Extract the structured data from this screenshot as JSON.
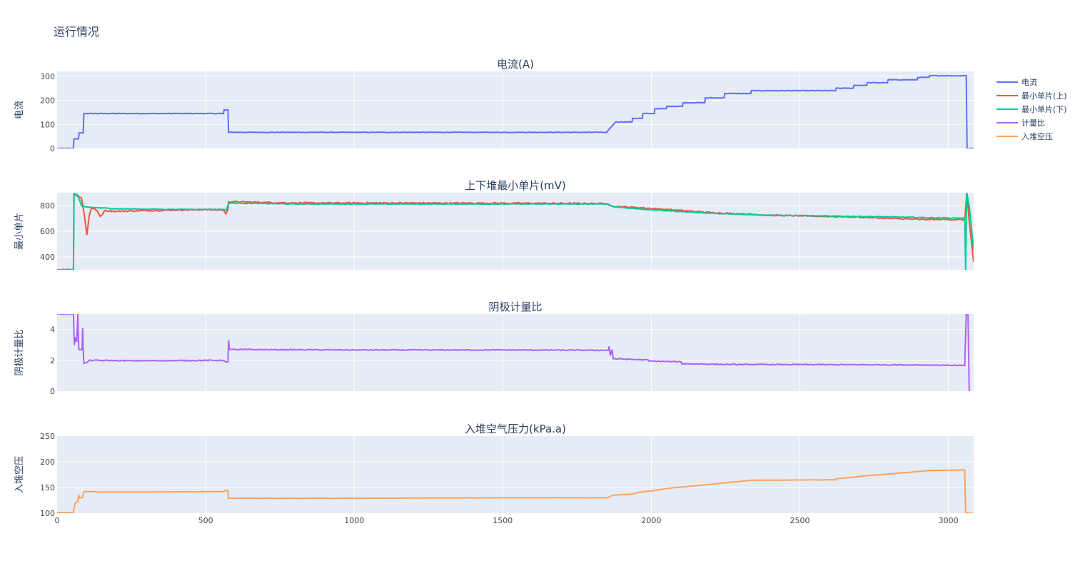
{
  "page": {
    "title": "运行情况"
  },
  "chart_data": {
    "type": "line",
    "x_axis": {
      "range": [
        0,
        3085
      ],
      "ticks": [
        0,
        500,
        1000,
        1500,
        2000,
        2500,
        3000
      ]
    },
    "legend": {
      "placement": "top-right",
      "items": [
        {
          "name": "电流",
          "color": "#636efa"
        },
        {
          "name": "最小单片(上)",
          "color": "#ef553b"
        },
        {
          "name": "最小单片(下)",
          "color": "#00cc96"
        },
        {
          "name": "计量比",
          "color": "#ab63fa"
        },
        {
          "name": "入堆空压",
          "color": "#ffa15a"
        }
      ]
    },
    "panels": [
      {
        "title": "电流(A)",
        "ylabel": "电流",
        "ylim": [
          0,
          320
        ],
        "yticks": [
          0,
          100,
          200,
          300
        ],
        "series": [
          {
            "name": "电流",
            "color": "#636efa",
            "noise": 1.2,
            "points": [
              [
                0,
                0
              ],
              [
                55,
                0
              ],
              [
                57,
                40
              ],
              [
                72,
                40
              ],
              [
                74,
                65
              ],
              [
                88,
                65
              ],
              [
                90,
                145
              ],
              [
                560,
                145
              ],
              [
                562,
                160
              ],
              [
                575,
                160
              ],
              [
                577,
                67
              ],
              [
                1850,
                67
              ],
              [
                1858,
                80
              ],
              [
                1868,
                93
              ],
              [
                1880,
                110
              ],
              [
                1935,
                110
              ],
              [
                1937,
                125
              ],
              [
                1970,
                125
              ],
              [
                1972,
                145
              ],
              [
                2010,
                145
              ],
              [
                2012,
                165
              ],
              [
                2050,
                165
              ],
              [
                2052,
                175
              ],
              [
                2105,
                175
              ],
              [
                2107,
                190
              ],
              [
                2180,
                190
              ],
              [
                2182,
                210
              ],
              [
                2245,
                210
              ],
              [
                2247,
                228
              ],
              [
                2335,
                228
              ],
              [
                2337,
                240
              ],
              [
                2620,
                240
              ],
              [
                2622,
                250
              ],
              [
                2680,
                250
              ],
              [
                2682,
                262
              ],
              [
                2725,
                262
              ],
              [
                2727,
                273
              ],
              [
                2795,
                273
              ],
              [
                2797,
                285
              ],
              [
                2895,
                285
              ],
              [
                2897,
                295
              ],
              [
                2935,
                295
              ],
              [
                2937,
                302
              ],
              [
                3060,
                302
              ],
              [
                3063,
                0
              ],
              [
                3085,
                0
              ]
            ]
          }
        ]
      },
      {
        "title": "上下堆最小单片(mV)",
        "ylabel": "最小单片",
        "ylim": [
          300,
          900
        ],
        "yticks": [
          400,
          600,
          800
        ],
        "series": [
          {
            "name": "最小单片(上)",
            "color": "#ef553b",
            "noise": 5,
            "points": [
              [
                0,
                300
              ],
              [
                55,
                300
              ],
              [
                57,
                890
              ],
              [
                70,
                870
              ],
              [
                82,
                860
              ],
              [
                92,
                720
              ],
              [
                100,
                570
              ],
              [
                108,
                720
              ],
              [
                115,
                780
              ],
              [
                125,
                775
              ],
              [
                135,
                760
              ],
              [
                145,
                715
              ],
              [
                152,
                730
              ],
              [
                160,
                760
              ],
              [
                200,
                755
              ],
              [
                300,
                760
              ],
              [
                400,
                765
              ],
              [
                500,
                768
              ],
              [
                560,
                765
              ],
              [
                568,
                735
              ],
              [
                575,
                770
              ],
              [
                577,
                830
              ],
              [
                800,
                820
              ],
              [
                1200,
                820
              ],
              [
                1600,
                818
              ],
              [
                1850,
                815
              ],
              [
                1870,
                795
              ],
              [
                1950,
                785
              ],
              [
                2050,
                770
              ],
              [
                2200,
                745
              ],
              [
                2400,
                725
              ],
              [
                2600,
                715
              ],
              [
                2700,
                710
              ],
              [
                2800,
                700
              ],
              [
                2900,
                692
              ],
              [
                3000,
                692
              ],
              [
                3055,
                690
              ],
              [
                3062,
                900
              ],
              [
                3070,
                680
              ],
              [
                3085,
                360
              ]
            ]
          },
          {
            "name": "最小单片(下)",
            "color": "#00cc96",
            "noise": 3,
            "points": [
              [
                0,
                300
              ],
              [
                55,
                300
              ],
              [
                57,
                895
              ],
              [
                70,
                880
              ],
              [
                82,
                800
              ],
              [
                95,
                790
              ],
              [
                120,
                785
              ],
              [
                200,
                775
              ],
              [
                300,
                772
              ],
              [
                400,
                770
              ],
              [
                500,
                770
              ],
              [
                560,
                770
              ],
              [
                570,
                765
              ],
              [
                577,
                820
              ],
              [
                800,
                812
              ],
              [
                1200,
                812
              ],
              [
                1600,
                812
              ],
              [
                1850,
                812
              ],
              [
                1870,
                792
              ],
              [
                1950,
                775
              ],
              [
                2050,
                760
              ],
              [
                2200,
                740
              ],
              [
                2400,
                725
              ],
              [
                2600,
                718
              ],
              [
                2800,
                712
              ],
              [
                2900,
                707
              ],
              [
                3000,
                703
              ],
              [
                3055,
                703
              ],
              [
                3058,
                300
              ],
              [
                3062,
                900
              ],
              [
                3070,
                800
              ],
              [
                3085,
                460
              ]
            ]
          }
        ]
      },
      {
        "title": "阴极计量比",
        "ylabel": "阴极计量比",
        "ylim": [
          0,
          5
        ],
        "yticks": [
          0,
          2,
          4
        ],
        "series": [
          {
            "name": "计量比",
            "color": "#ab63fa",
            "noise": 0.03,
            "points": [
              [
                0,
                5
              ],
              [
                55,
                5
              ],
              [
                58,
                3
              ],
              [
                62,
                3.5
              ],
              [
                66,
                3.2
              ],
              [
                70,
                5
              ],
              [
                73,
                2.7
              ],
              [
                84,
                2.7
              ],
              [
                86,
                4.1
              ],
              [
                88,
                2.6
              ],
              [
                90,
                1.8
              ],
              [
                100,
                1.85
              ],
              [
                108,
                2.0
              ],
              [
                250,
                1.97
              ],
              [
                400,
                1.98
              ],
              [
                560,
                2.0
              ],
              [
                568,
                1.9
              ],
              [
                575,
                1.9
              ],
              [
                577,
                3.3
              ],
              [
                580,
                2.7
              ],
              [
                1000,
                2.67
              ],
              [
                1500,
                2.67
              ],
              [
                1855,
                2.65
              ],
              [
                1858,
                2.9
              ],
              [
                1862,
                2.3
              ],
              [
                1868,
                2.7
              ],
              [
                1872,
                2.1
              ],
              [
                1990,
                2.02
              ],
              [
                1992,
                1.95
              ],
              [
                2100,
                1.9
              ],
              [
                2102,
                1.78
              ],
              [
                2200,
                1.75
              ],
              [
                2250,
                1.73
              ],
              [
                2600,
                1.72
              ],
              [
                2900,
                1.7
              ],
              [
                3000,
                1.68
              ],
              [
                3055,
                1.66
              ],
              [
                3060,
                5
              ],
              [
                3066,
                5
              ],
              [
                3070,
                0
              ],
              [
                3073,
                0
              ]
            ]
          }
        ]
      },
      {
        "title": "入堆空气压力(kPa.a)",
        "ylabel": "入堆空压",
        "ylim": [
          100,
          250
        ],
        "yticks": [
          100,
          150,
          200,
          250
        ],
        "series": [
          {
            "name": "入堆空压",
            "color": "#ffa15a",
            "noise": 0.2,
            "points": [
              [
                0,
                101
              ],
              [
                52,
                101
              ],
              [
                55,
                103
              ],
              [
                60,
                118
              ],
              [
                66,
                122
              ],
              [
                70,
                122
              ],
              [
                72,
                136
              ],
              [
                75,
                130
              ],
              [
                85,
                130
              ],
              [
                90,
                142
              ],
              [
                130,
                142
              ],
              [
                132,
                141
              ],
              [
                560,
                142
              ],
              [
                565,
                144
              ],
              [
                575,
                144
              ],
              [
                577,
                129
              ],
              [
                1000,
                129
              ],
              [
                1500,
                130
              ],
              [
                1850,
                130
              ],
              [
                1860,
                132
              ],
              [
                1870,
                135
              ],
              [
                1935,
                137
              ],
              [
                1960,
                141
              ],
              [
                2010,
                144
              ],
              [
                2050,
                148
              ],
              [
                2105,
                151
              ],
              [
                2180,
                155
              ],
              [
                2245,
                159
              ],
              [
                2335,
                164
              ],
              [
                2620,
                165
              ],
              [
                2622,
                167
              ],
              [
                2680,
                170
              ],
              [
                2725,
                173
              ],
              [
                2795,
                176
              ],
              [
                2895,
                181
              ],
              [
                2935,
                183
              ],
              [
                3050,
                184
              ],
              [
                3055,
                184
              ],
              [
                3058,
                102
              ],
              [
                3070,
                100
              ],
              [
                3085,
                100
              ]
            ]
          }
        ]
      }
    ]
  }
}
